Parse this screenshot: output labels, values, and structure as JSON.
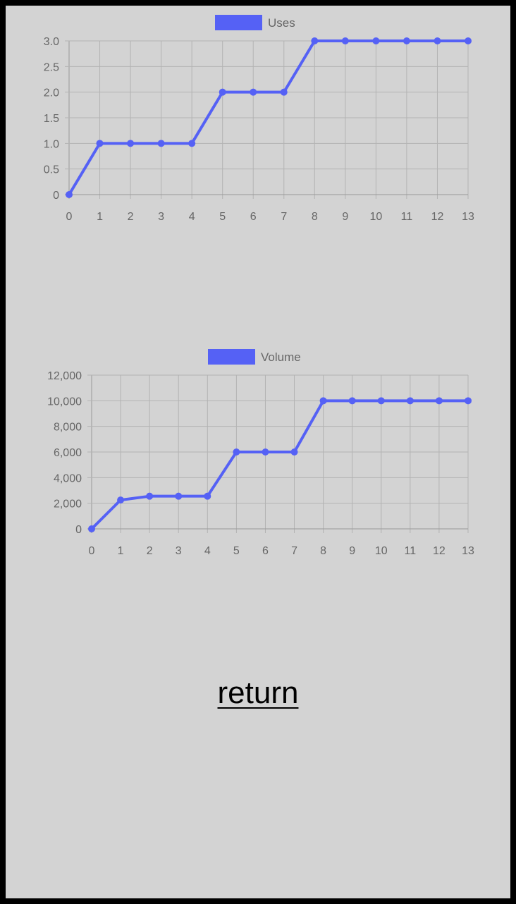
{
  "chart_data": [
    {
      "type": "line",
      "x": [
        0,
        1,
        2,
        3,
        4,
        5,
        6,
        7,
        8,
        9,
        10,
        11,
        12,
        13
      ],
      "series": [
        {
          "name": "Uses",
          "values": [
            0,
            1,
            1,
            1,
            1,
            2,
            2,
            2,
            3,
            3,
            3,
            3,
            3,
            3
          ]
        }
      ],
      "yticks": [
        0,
        0.5,
        1,
        1.5,
        2,
        2.5,
        3
      ],
      "ytick_labels": [
        "0",
        "0.5",
        "1.0",
        "1.5",
        "2.0",
        "2.5",
        "3.0"
      ],
      "ylim": [
        0,
        3
      ],
      "xlim": [
        0,
        13
      ],
      "color": "#5561f5",
      "grid": true,
      "legend_position": "top-center"
    },
    {
      "type": "line",
      "x": [
        0,
        1,
        2,
        3,
        4,
        5,
        6,
        7,
        8,
        9,
        10,
        11,
        12,
        13
      ],
      "series": [
        {
          "name": "Volume",
          "values": [
            0,
            2250,
            2550,
            2550,
            2550,
            6000,
            6000,
            6000,
            10000,
            10000,
            10000,
            10000,
            10000,
            10000
          ]
        }
      ],
      "yticks": [
        0,
        2000,
        4000,
        6000,
        8000,
        10000,
        12000
      ],
      "ytick_labels": [
        "0",
        "2,000",
        "4,000",
        "6,000",
        "8,000",
        "10,000",
        "12,000"
      ],
      "ylim": [
        0,
        12000
      ],
      "xlim": [
        0,
        13
      ],
      "color": "#5561f5",
      "grid": true,
      "legend_position": "top-center"
    }
  ],
  "footer": {
    "return_label": "return"
  }
}
